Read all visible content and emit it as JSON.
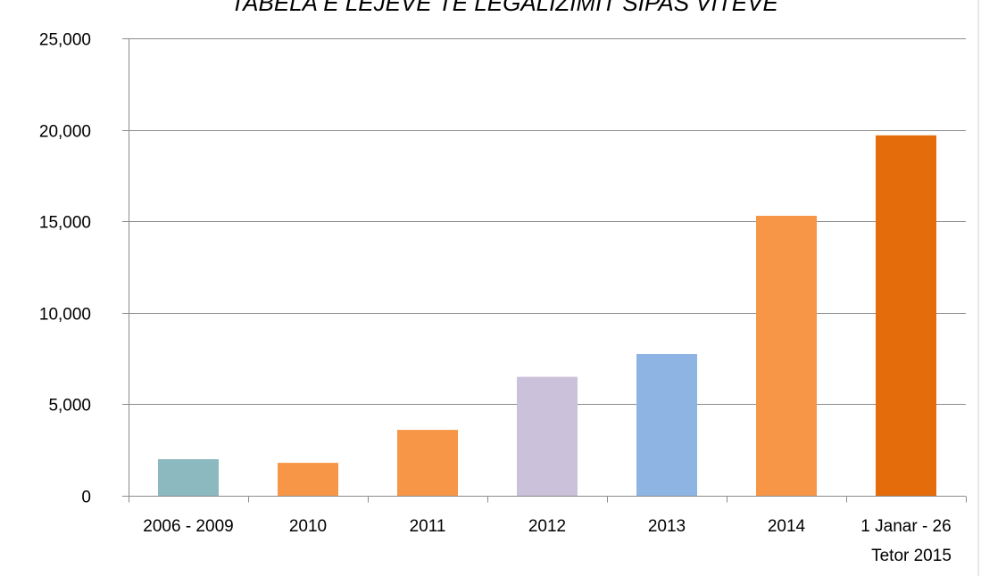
{
  "chart_data": {
    "type": "bar",
    "title": "TABELA E LEJEVE TE LEGALIZIMIT SIPAS VITEVE",
    "xlabel": "",
    "ylabel": "",
    "categories": [
      [
        "2006 - 2009"
      ],
      [
        "2010"
      ],
      [
        "2011"
      ],
      [
        "2012"
      ],
      [
        "2013"
      ],
      [
        "2014"
      ],
      [
        "1 Janar -  26",
        "Tetor 2015"
      ]
    ],
    "values": [
      2000,
      1800,
      3600,
      6500,
      7750,
      15300,
      19700
    ],
    "colors": [
      "#8cb8c0",
      "#f79646",
      "#f79646",
      "#ccc1da",
      "#8eb4e3",
      "#f79646",
      "#e46c0a"
    ],
    "ylim": [
      0,
      25000
    ],
    "yticks": [
      0,
      5000,
      10000,
      15000,
      20000,
      25000
    ],
    "ytick_labels": [
      "0",
      "5,000",
      "10,000",
      "15,000",
      "20,000",
      "25,000"
    ],
    "grid": true,
    "legend": "none"
  }
}
